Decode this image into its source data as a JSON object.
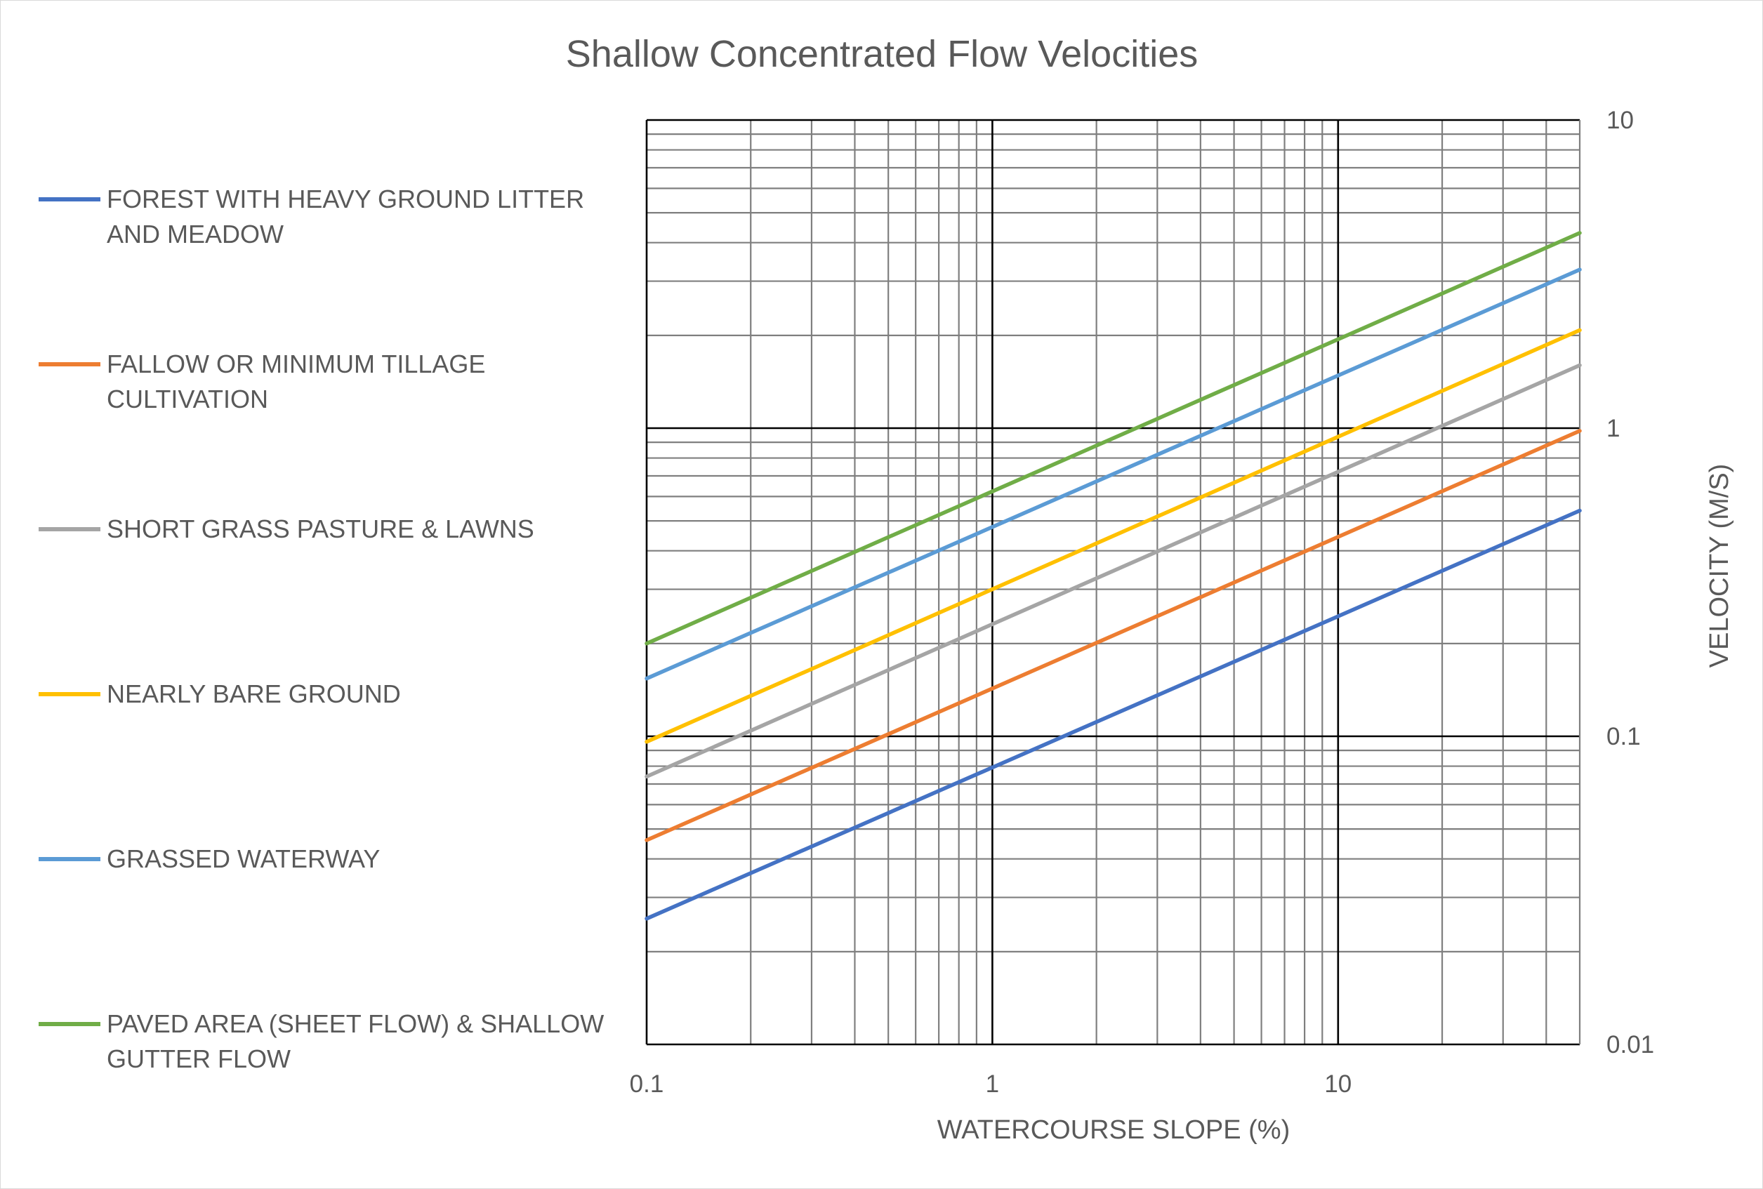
{
  "chart_data": {
    "type": "line",
    "title": "Shallow Concentrated Flow Velocities",
    "xlabel": "WATERCOURSE SLOPE (%)",
    "ylabel": "VELOCITY (M/S)",
    "x_scale": "log",
    "y_scale": "log",
    "xlim": [
      0.1,
      50
    ],
    "ylim": [
      0.01,
      10
    ],
    "x_ticks": [
      {
        "value": 0.1,
        "label": "0.1"
      },
      {
        "value": 1,
        "label": "1"
      },
      {
        "value": 10,
        "label": "10"
      }
    ],
    "y_ticks": [
      {
        "value": 10,
        "label": "10"
      },
      {
        "value": 1,
        "label": "1"
      },
      {
        "value": 0.1,
        "label": "0.1"
      },
      {
        "value": 0.01,
        "label": "0.01"
      }
    ],
    "y_axis_position": "right",
    "grid": true,
    "legend": "left",
    "series": [
      {
        "name": "FOREST WITH HEAVY GROUND LITTER AND MEADOW",
        "legend_lines": [
          "FOREST WITH HEAVY GROUND LITTER",
          "AND MEADOW"
        ],
        "color": "#4472C4",
        "x": [
          0.1,
          50
        ],
        "y": [
          0.0256,
          0.54
        ]
      },
      {
        "name": "FALLOW OR MINIMUM TILLAGE CULTIVATION",
        "legend_lines": [
          "FALLOW OR MINIMUM TILLAGE",
          "CULTIVATION"
        ],
        "color": "#ED7D31",
        "x": [
          0.1,
          50
        ],
        "y": [
          0.046,
          0.98
        ]
      },
      {
        "name": "SHORT GRASS PASTURE & LAWNS",
        "legend_lines": [
          "SHORT GRASS PASTURE & LAWNS"
        ],
        "color": "#A5A5A5",
        "x": [
          0.1,
          50
        ],
        "y": [
          0.074,
          1.6
        ]
      },
      {
        "name": "NEARLY BARE GROUND",
        "legend_lines": [
          "NEARLY BARE GROUND"
        ],
        "color": "#FFC000",
        "x": [
          0.1,
          50
        ],
        "y": [
          0.096,
          2.08
        ]
      },
      {
        "name": "GRASSED WATERWAY",
        "legend_lines": [
          "GRASSED WATERWAY"
        ],
        "color": "#5B9BD5",
        "x": [
          0.1,
          50
        ],
        "y": [
          0.154,
          3.27
        ]
      },
      {
        "name": "PAVED AREA (SHEET FLOW) & SHALLOW GUTTER FLOW",
        "legend_lines": [
          "PAVED AREA (SHEET FLOW) & SHALLOW",
          "GUTTER FLOW"
        ],
        "color": "#70AD47",
        "x": [
          0.1,
          50
        ],
        "y": [
          0.2,
          4.3
        ]
      }
    ]
  }
}
